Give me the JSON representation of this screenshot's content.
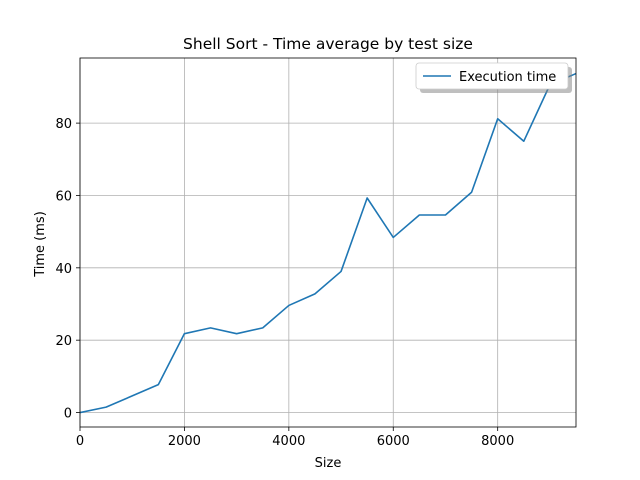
{
  "chart_data": {
    "type": "line",
    "title": "Shell Sort - Time average by test size",
    "xlabel": "Size",
    "ylabel": "Time (ms)",
    "xlim": [
      0,
      9500
    ],
    "ylim": [
      -4,
      98
    ],
    "xticks": [
      0,
      2000,
      4000,
      6000,
      8000
    ],
    "yticks": [
      0,
      20,
      40,
      60,
      80
    ],
    "grid": true,
    "legend_position": "top-right",
    "series": [
      {
        "name": "Execution time",
        "color": "#1f77b4",
        "x": [
          0,
          500,
          1000,
          1500,
          2000,
          2500,
          3000,
          3500,
          4000,
          4500,
          5000,
          5500,
          6000,
          6500,
          7000,
          7500,
          8000,
          8500,
          9000,
          9500
        ],
        "y": [
          0,
          1.5,
          4.6,
          7.7,
          21.8,
          23.4,
          21.8,
          23.4,
          29.6,
          32.8,
          39.0,
          59.3,
          48.4,
          54.6,
          54.6,
          60.9,
          81.2,
          75.0,
          90.6,
          93.7
        ]
      }
    ]
  }
}
